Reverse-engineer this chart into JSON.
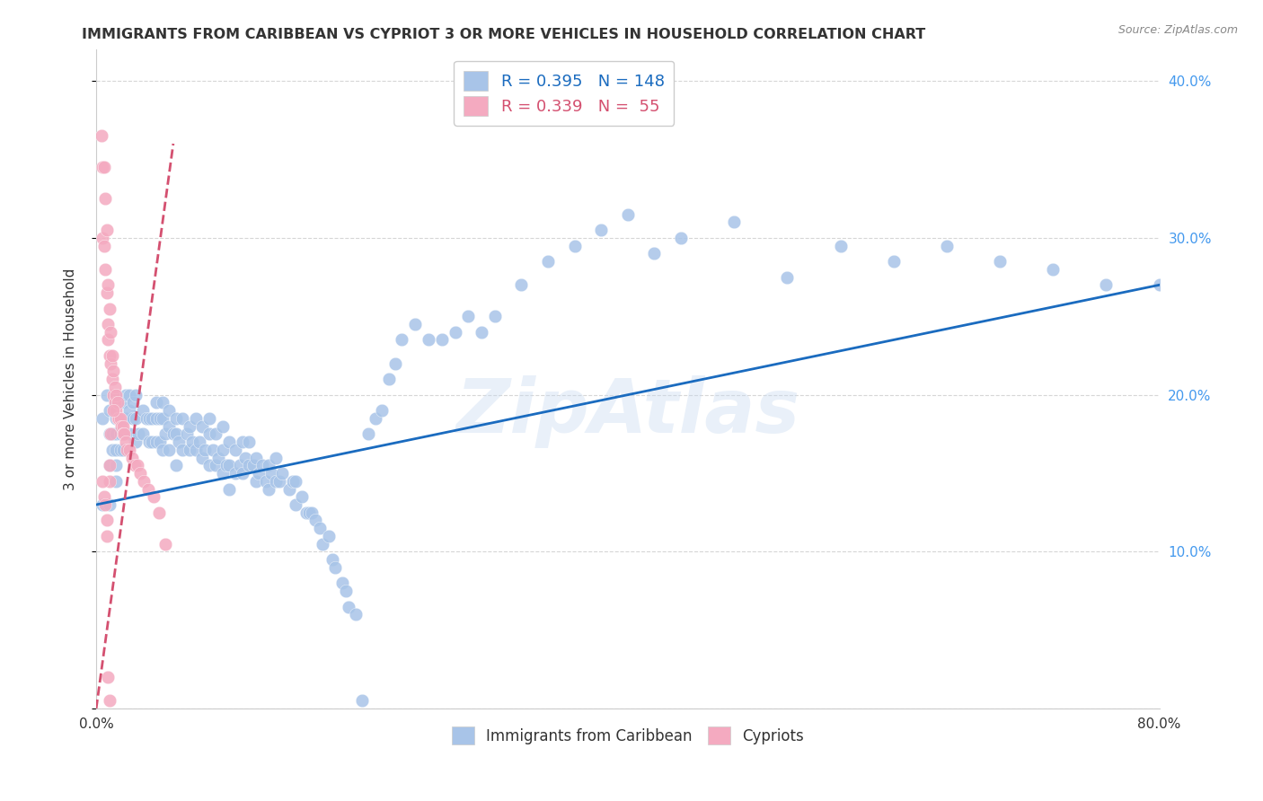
{
  "title": "IMMIGRANTS FROM CARIBBEAN VS CYPRIOT 3 OR MORE VEHICLES IN HOUSEHOLD CORRELATION CHART",
  "source": "Source: ZipAtlas.com",
  "ylabel": "3 or more Vehicles in Household",
  "xmin": 0.0,
  "xmax": 0.8,
  "ymin": 0.0,
  "ymax": 0.42,
  "yticks": [
    0.0,
    0.1,
    0.2,
    0.3,
    0.4
  ],
  "ytick_labels": [
    "",
    "10.0%",
    "20.0%",
    "30.0%",
    "40.0%"
  ],
  "xticks": [
    0.0,
    0.1,
    0.2,
    0.3,
    0.4,
    0.5,
    0.6,
    0.7,
    0.8
  ],
  "xtick_labels": [
    "0.0%",
    "",
    "",
    "",
    "",
    "",
    "",
    "",
    "80.0%"
  ],
  "blue_R": 0.395,
  "blue_N": 148,
  "pink_R": 0.339,
  "pink_N": 55,
  "blue_color": "#a8c4e8",
  "pink_color": "#f4aac0",
  "blue_line_color": "#1a6bbf",
  "pink_line_color": "#d45070",
  "grid_color": "#cccccc",
  "axis_label_color": "#4499ee",
  "watermark": "ZipAtlas",
  "blue_line_x0": 0.0,
  "blue_line_x1": 0.8,
  "blue_line_y0": 0.13,
  "blue_line_y1": 0.27,
  "pink_line_x0": 0.0,
  "pink_line_x1": 0.058,
  "pink_line_y0": 0.0,
  "pink_line_y1": 0.36,
  "blue_scatter_x": [
    0.005,
    0.005,
    0.008,
    0.01,
    0.01,
    0.01,
    0.01,
    0.012,
    0.012,
    0.015,
    0.015,
    0.015,
    0.015,
    0.015,
    0.015,
    0.015,
    0.018,
    0.018,
    0.018,
    0.02,
    0.02,
    0.02,
    0.022,
    0.022,
    0.025,
    0.025,
    0.025,
    0.028,
    0.028,
    0.03,
    0.03,
    0.03,
    0.032,
    0.035,
    0.035,
    0.038,
    0.04,
    0.04,
    0.042,
    0.042,
    0.045,
    0.045,
    0.045,
    0.048,
    0.048,
    0.05,
    0.05,
    0.05,
    0.052,
    0.055,
    0.055,
    0.055,
    0.058,
    0.06,
    0.06,
    0.06,
    0.062,
    0.065,
    0.065,
    0.068,
    0.07,
    0.07,
    0.072,
    0.075,
    0.075,
    0.078,
    0.08,
    0.08,
    0.082,
    0.085,
    0.085,
    0.085,
    0.088,
    0.09,
    0.09,
    0.092,
    0.095,
    0.095,
    0.095,
    0.098,
    0.1,
    0.1,
    0.1,
    0.105,
    0.105,
    0.108,
    0.11,
    0.11,
    0.112,
    0.115,
    0.115,
    0.118,
    0.12,
    0.12,
    0.122,
    0.125,
    0.128,
    0.13,
    0.13,
    0.132,
    0.135,
    0.135,
    0.138,
    0.14,
    0.145,
    0.148,
    0.15,
    0.15,
    0.155,
    0.158,
    0.16,
    0.162,
    0.165,
    0.168,
    0.17,
    0.175,
    0.178,
    0.18,
    0.185,
    0.188,
    0.19,
    0.195,
    0.2,
    0.205,
    0.21,
    0.215,
    0.22,
    0.225,
    0.23,
    0.24,
    0.25,
    0.26,
    0.27,
    0.28,
    0.29,
    0.3,
    0.32,
    0.34,
    0.36,
    0.38,
    0.4,
    0.42,
    0.44,
    0.48,
    0.52,
    0.56,
    0.6,
    0.64,
    0.68,
    0.72,
    0.76,
    0.8
  ],
  "blue_scatter_y": [
    0.185,
    0.13,
    0.2,
    0.19,
    0.175,
    0.155,
    0.13,
    0.175,
    0.165,
    0.2,
    0.195,
    0.185,
    0.175,
    0.165,
    0.155,
    0.145,
    0.185,
    0.175,
    0.165,
    0.195,
    0.185,
    0.165,
    0.2,
    0.185,
    0.2,
    0.19,
    0.175,
    0.195,
    0.185,
    0.2,
    0.185,
    0.17,
    0.175,
    0.19,
    0.175,
    0.185,
    0.185,
    0.17,
    0.185,
    0.17,
    0.195,
    0.185,
    0.17,
    0.185,
    0.17,
    0.195,
    0.185,
    0.165,
    0.175,
    0.19,
    0.18,
    0.165,
    0.175,
    0.185,
    0.175,
    0.155,
    0.17,
    0.185,
    0.165,
    0.175,
    0.18,
    0.165,
    0.17,
    0.185,
    0.165,
    0.17,
    0.18,
    0.16,
    0.165,
    0.185,
    0.175,
    0.155,
    0.165,
    0.175,
    0.155,
    0.16,
    0.18,
    0.165,
    0.15,
    0.155,
    0.17,
    0.155,
    0.14,
    0.165,
    0.15,
    0.155,
    0.17,
    0.15,
    0.16,
    0.17,
    0.155,
    0.155,
    0.16,
    0.145,
    0.15,
    0.155,
    0.145,
    0.155,
    0.14,
    0.15,
    0.16,
    0.145,
    0.145,
    0.15,
    0.14,
    0.145,
    0.145,
    0.13,
    0.135,
    0.125,
    0.125,
    0.125,
    0.12,
    0.115,
    0.105,
    0.11,
    0.095,
    0.09,
    0.08,
    0.075,
    0.065,
    0.06,
    0.005,
    0.175,
    0.185,
    0.19,
    0.21,
    0.22,
    0.235,
    0.245,
    0.235,
    0.235,
    0.24,
    0.25,
    0.24,
    0.25,
    0.27,
    0.285,
    0.295,
    0.305,
    0.315,
    0.29,
    0.3,
    0.31,
    0.275,
    0.295,
    0.285,
    0.295,
    0.285,
    0.28,
    0.27,
    0.27
  ],
  "pink_scatter_x": [
    0.004,
    0.005,
    0.005,
    0.006,
    0.006,
    0.007,
    0.007,
    0.008,
    0.008,
    0.009,
    0.009,
    0.009,
    0.01,
    0.01,
    0.011,
    0.011,
    0.012,
    0.012,
    0.013,
    0.013,
    0.014,
    0.014,
    0.015,
    0.015,
    0.016,
    0.016,
    0.017,
    0.018,
    0.019,
    0.02,
    0.02,
    0.021,
    0.022,
    0.023,
    0.025,
    0.027,
    0.029,
    0.031,
    0.033,
    0.036,
    0.039,
    0.043,
    0.047,
    0.052,
    0.01,
    0.01,
    0.011,
    0.013,
    0.005,
    0.006,
    0.007,
    0.008,
    0.008,
    0.009,
    0.01
  ],
  "pink_scatter_y": [
    0.365,
    0.345,
    0.3,
    0.345,
    0.295,
    0.325,
    0.28,
    0.305,
    0.265,
    0.27,
    0.245,
    0.235,
    0.255,
    0.225,
    0.24,
    0.22,
    0.225,
    0.21,
    0.215,
    0.2,
    0.205,
    0.195,
    0.2,
    0.19,
    0.195,
    0.185,
    0.185,
    0.185,
    0.18,
    0.18,
    0.175,
    0.175,
    0.17,
    0.165,
    0.165,
    0.16,
    0.155,
    0.155,
    0.15,
    0.145,
    0.14,
    0.135,
    0.125,
    0.105,
    0.155,
    0.145,
    0.175,
    0.19,
    0.145,
    0.135,
    0.13,
    0.12,
    0.11,
    0.02,
    0.005
  ]
}
